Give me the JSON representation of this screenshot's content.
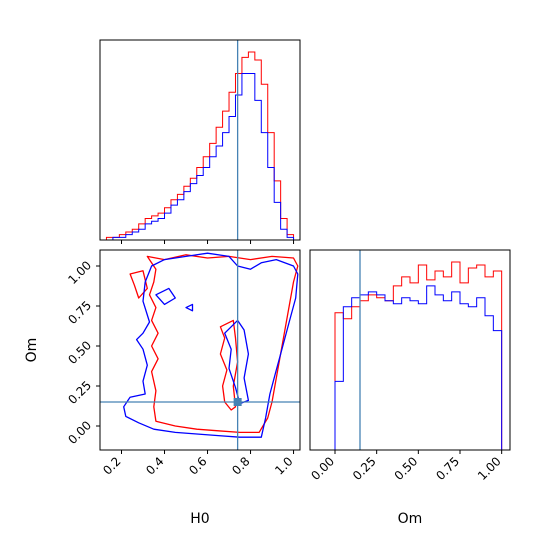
{
  "chart_data": {
    "type": "corner",
    "parameters": [
      "H0",
      "Om"
    ],
    "truths": {
      "H0": 0.74,
      "Om": 0.15
    },
    "truth_color": "#4682b4",
    "series": [
      {
        "color": "#ff0000"
      },
      {
        "color": "#0000ff"
      }
    ],
    "panels": [
      {
        "id": "hist_H0",
        "type": "histogram",
        "param": "H0",
        "xlim": [
          0.1,
          1.03
        ],
        "xticks": [
          0.2,
          0.4,
          0.6,
          0.8,
          1.0
        ],
        "bin_edges": [
          0.1,
          0.13,
          0.16,
          0.19,
          0.22,
          0.25,
          0.28,
          0.31,
          0.34,
          0.37,
          0.4,
          0.43,
          0.46,
          0.49,
          0.52,
          0.55,
          0.58,
          0.61,
          0.64,
          0.67,
          0.7,
          0.73,
          0.76,
          0.79,
          0.82,
          0.85,
          0.88,
          0.91,
          0.94,
          0.97,
          1.0
        ],
        "counts": [
          [
            0,
            1,
            1,
            2,
            3,
            4,
            6,
            8,
            9,
            10,
            12,
            15,
            17,
            20,
            23,
            27,
            31,
            36,
            42,
            48,
            55,
            62,
            68,
            70,
            67,
            58,
            40,
            22,
            8,
            2
          ],
          [
            0,
            0,
            1,
            1,
            2,
            3,
            4,
            6,
            7,
            8,
            10,
            13,
            15,
            18,
            21,
            24,
            27,
            31,
            35,
            40,
            46,
            54,
            62,
            62,
            52,
            40,
            27,
            14,
            4,
            1
          ]
        ]
      },
      {
        "id": "contour_H0_Om",
        "type": "contour2d",
        "xparam": "H0",
        "yparam": "Om",
        "xlim": [
          0.1,
          1.03
        ],
        "ylim": [
          -0.15,
          1.1
        ],
        "xticks": [
          0.2,
          0.4,
          0.6,
          0.8,
          1.0
        ],
        "yticks": [
          0.0,
          0.25,
          0.5,
          0.75,
          1.0
        ],
        "contours": [
          {
            "series": 0,
            "points": [
              [
                0.32,
                1.06
              ],
              [
                0.36,
                0.98
              ],
              [
                0.35,
                0.9
              ],
              [
                0.33,
                0.82
              ],
              [
                0.36,
                0.74
              ],
              [
                0.34,
                0.66
              ],
              [
                0.37,
                0.58
              ],
              [
                0.34,
                0.5
              ],
              [
                0.37,
                0.42
              ],
              [
                0.34,
                0.34
              ],
              [
                0.36,
                0.22
              ],
              [
                0.35,
                0.12
              ],
              [
                0.36,
                0.03
              ],
              [
                0.45,
                0.0
              ],
              [
                0.55,
                -0.02
              ],
              [
                0.65,
                -0.03
              ],
              [
                0.75,
                -0.04
              ],
              [
                0.84,
                -0.04
              ],
              [
                0.88,
                0.05
              ],
              [
                0.9,
                0.15
              ],
              [
                0.92,
                0.3
              ],
              [
                0.94,
                0.45
              ],
              [
                0.96,
                0.6
              ],
              [
                0.98,
                0.75
              ],
              [
                1.0,
                0.9
              ],
              [
                1.02,
                1.0
              ],
              [
                1.0,
                1.05
              ],
              [
                0.9,
                1.06
              ],
              [
                0.8,
                1.04
              ],
              [
                0.7,
                1.06
              ],
              [
                0.6,
                1.05
              ],
              [
                0.5,
                1.07
              ],
              [
                0.4,
                1.04
              ],
              [
                0.32,
                1.06
              ]
            ]
          },
          {
            "series": 0,
            "points": [
              [
                0.66,
                0.62
              ],
              [
                0.68,
                0.55
              ],
              [
                0.66,
                0.45
              ],
              [
                0.69,
                0.35
              ],
              [
                0.67,
                0.25
              ],
              [
                0.68,
                0.15
              ],
              [
                0.71,
                0.1
              ],
              [
                0.73,
                0.12
              ],
              [
                0.72,
                0.25
              ],
              [
                0.74,
                0.4
              ],
              [
                0.73,
                0.55
              ],
              [
                0.72,
                0.66
              ],
              [
                0.66,
                0.62
              ]
            ]
          },
          {
            "series": 0,
            "points": [
              [
                0.24,
                0.95
              ],
              [
                0.3,
                0.97
              ],
              [
                0.32,
                0.86
              ],
              [
                0.28,
                0.8
              ],
              [
                0.26,
                0.88
              ],
              [
                0.24,
                0.95
              ]
            ]
          },
          {
            "series": 1,
            "points": [
              [
                0.31,
                0.9
              ],
              [
                0.3,
                0.78
              ],
              [
                0.33,
                0.65
              ],
              [
                0.3,
                0.58
              ],
              [
                0.27,
                0.54
              ],
              [
                0.3,
                0.48
              ],
              [
                0.32,
                0.38
              ],
              [
                0.3,
                0.28
              ],
              [
                0.31,
                0.2
              ],
              [
                0.24,
                0.18
              ],
              [
                0.21,
                0.12
              ],
              [
                0.22,
                0.06
              ],
              [
                0.28,
                0.02
              ],
              [
                0.35,
                -0.02
              ],
              [
                0.45,
                -0.04
              ],
              [
                0.55,
                -0.05
              ],
              [
                0.65,
                -0.06
              ],
              [
                0.75,
                -0.07
              ],
              [
                0.85,
                -0.07
              ],
              [
                0.87,
                0.05
              ],
              [
                0.89,
                0.2
              ],
              [
                0.92,
                0.35
              ],
              [
                0.95,
                0.5
              ],
              [
                0.98,
                0.65
              ],
              [
                1.01,
                0.8
              ],
              [
                1.02,
                0.95
              ],
              [
                1.0,
                1.0
              ],
              [
                0.92,
                1.04
              ],
              [
                0.85,
                1.02
              ],
              [
                0.8,
                0.98
              ],
              [
                0.74,
                1.0
              ],
              [
                0.7,
                1.06
              ],
              [
                0.6,
                1.08
              ],
              [
                0.5,
                1.06
              ],
              [
                0.4,
                1.04
              ],
              [
                0.34,
                1.0
              ],
              [
                0.31,
                0.9
              ]
            ]
          },
          {
            "series": 1,
            "points": [
              [
                0.68,
                0.58
              ],
              [
                0.71,
                0.48
              ],
              [
                0.7,
                0.36
              ],
              [
                0.73,
                0.24
              ],
              [
                0.75,
                0.14
              ],
              [
                0.79,
                0.16
              ],
              [
                0.77,
                0.3
              ],
              [
                0.79,
                0.45
              ],
              [
                0.77,
                0.6
              ],
              [
                0.74,
                0.66
              ],
              [
                0.68,
                0.58
              ]
            ]
          },
          {
            "series": 1,
            "points": [
              [
                0.36,
                0.82
              ],
              [
                0.42,
                0.86
              ],
              [
                0.45,
                0.8
              ],
              [
                0.4,
                0.76
              ],
              [
                0.36,
                0.82
              ]
            ]
          },
          {
            "series": 1,
            "points": [
              [
                0.5,
                0.74
              ],
              [
                0.53,
                0.76
              ],
              [
                0.53,
                0.72
              ],
              [
                0.5,
                0.74
              ]
            ]
          }
        ]
      },
      {
        "id": "hist_Om",
        "type": "histogram",
        "param": "Om",
        "xlim": [
          -0.15,
          1.05
        ],
        "xticks": [
          0.0,
          0.25,
          0.5,
          0.75,
          1.0
        ],
        "bin_edges": [
          0.0,
          0.05,
          0.1,
          0.15,
          0.2,
          0.25,
          0.3,
          0.35,
          0.4,
          0.45,
          0.5,
          0.55,
          0.6,
          0.65,
          0.7,
          0.75,
          0.8,
          0.85,
          0.9,
          0.95,
          1.0
        ],
        "counts": [
          [
            46,
            44,
            48,
            50,
            52,
            51,
            50,
            55,
            58,
            56,
            62,
            57,
            60,
            58,
            63,
            56,
            61,
            62,
            58,
            60
          ],
          [
            23,
            48,
            51,
            52,
            53,
            52,
            50,
            49,
            51,
            50,
            49,
            55,
            52,
            50,
            53,
            49,
            48,
            51,
            45,
            40
          ]
        ]
      }
    ]
  }
}
